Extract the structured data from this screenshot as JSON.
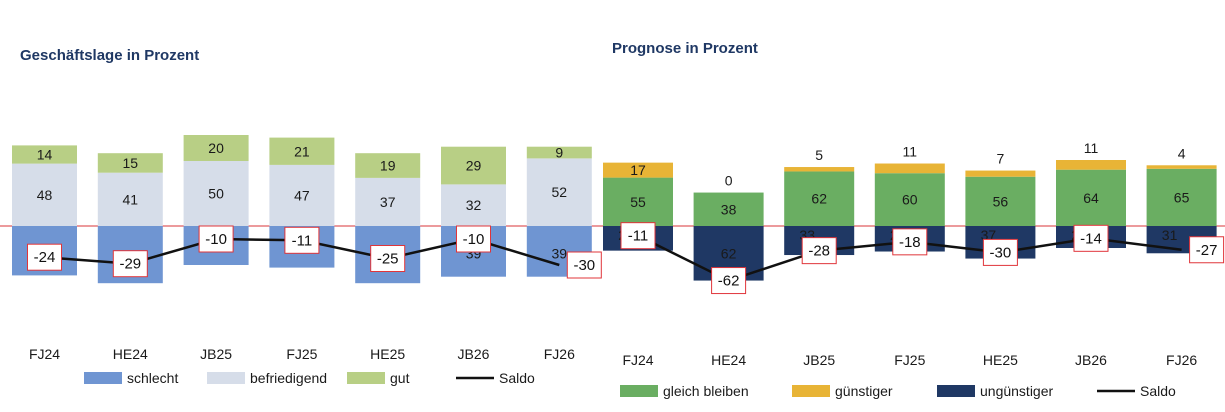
{
  "chart_data": [
    {
      "type": "bar",
      "stacked": true,
      "title": "Geschäftslage in Prozent",
      "categories": [
        "FJ24",
        "HE24",
        "JB25",
        "FJ25",
        "HE25",
        "JB26",
        "FJ26"
      ],
      "series": [
        {
          "name": "schlecht",
          "color": "#6f95d2",
          "values": [
            38,
            44,
            30,
            32,
            44,
            39,
            39
          ]
        },
        {
          "name": "befriedigend",
          "color": "#d6dde9",
          "values": [
            48,
            41,
            50,
            47,
            37,
            32,
            52
          ]
        },
        {
          "name": "gut",
          "color": "#b8cf85",
          "values": [
            14,
            15,
            20,
            21,
            19,
            29,
            9
          ]
        }
      ],
      "negative_series": "schlecht",
      "line": {
        "name": "Saldo",
        "color": "#111111",
        "values": [
          -24,
          -29,
          -10,
          -11,
          -25,
          -10,
          -30
        ]
      },
      "legend": [
        "schlecht",
        "befriedigend",
        "gut",
        "Saldo"
      ],
      "legend_position": "bottom"
    },
    {
      "type": "bar",
      "stacked": true,
      "title": "Prognose in Prozent",
      "categories": [
        "FJ24",
        "HE24",
        "JB25",
        "FJ25",
        "HE25",
        "JB26",
        "FJ26"
      ],
      "series": [
        {
          "name": "ungünstiger",
          "color": "#1f3864",
          "values": [
            28,
            62,
            33,
            29,
            37,
            25,
            31
          ]
        },
        {
          "name": "gleich bleiben",
          "color": "#6aae62",
          "values": [
            55,
            38,
            62,
            60,
            56,
            64,
            65
          ]
        },
        {
          "name": "günstiger",
          "color": "#e8b436",
          "values": [
            17,
            0,
            5,
            11,
            7,
            11,
            4
          ]
        }
      ],
      "negative_series": "ungünstiger",
      "line": {
        "name": "Saldo",
        "color": "#111111",
        "values": [
          -11,
          -62,
          -28,
          -18,
          -30,
          -14,
          -27
        ]
      },
      "legend": [
        "gleich bleiben",
        "günstiger",
        "ungünstiger",
        "Saldo"
      ],
      "legend_position": "bottom"
    }
  ]
}
